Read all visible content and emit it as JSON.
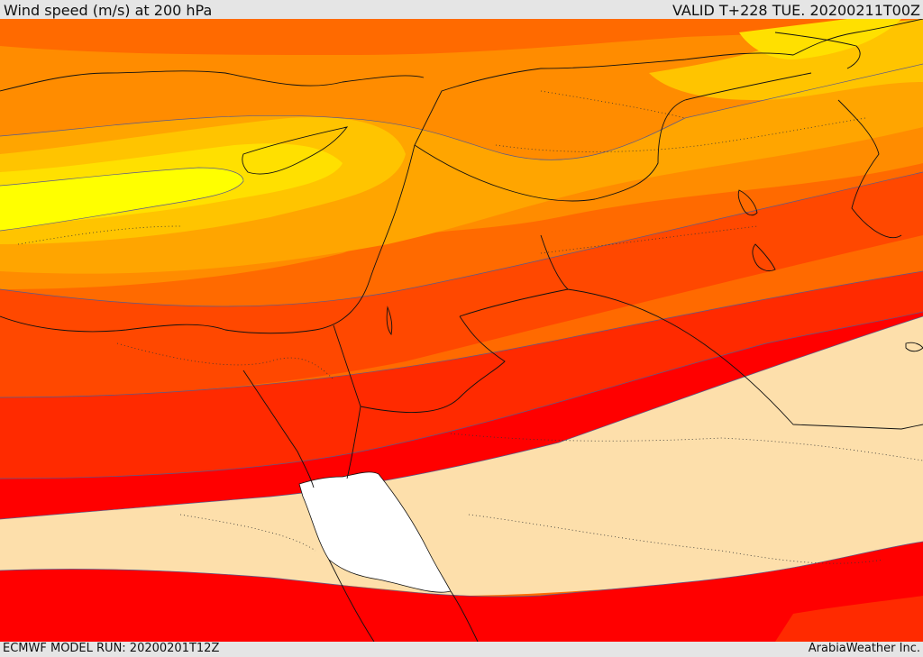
{
  "header": {
    "title": "Wind speed (m/s) at 200 hPa",
    "valid": "VALID T+228 TUE. 20200211T00Z"
  },
  "footer": {
    "model_run": "ECMWF MODEL RUN: 20200201T12Z",
    "brand": "ArabiaWeather Inc."
  },
  "map": {
    "variable": "wind speed",
    "level": "200 hPa",
    "units": "m/s",
    "palette": [
      "#ffffff",
      "#fddfab",
      "#ff0000",
      "#ff2200",
      "#ff4400",
      "#ff6500",
      "#ff8400",
      "#ffa400",
      "#ffc300",
      "#ffe100",
      "#ffff00"
    ],
    "region_features": [
      "cyprus-island",
      "sinai-peninsula",
      "red-sea",
      "gulf-of-aqaba",
      "dead-sea",
      "persian-gulf"
    ]
  }
}
